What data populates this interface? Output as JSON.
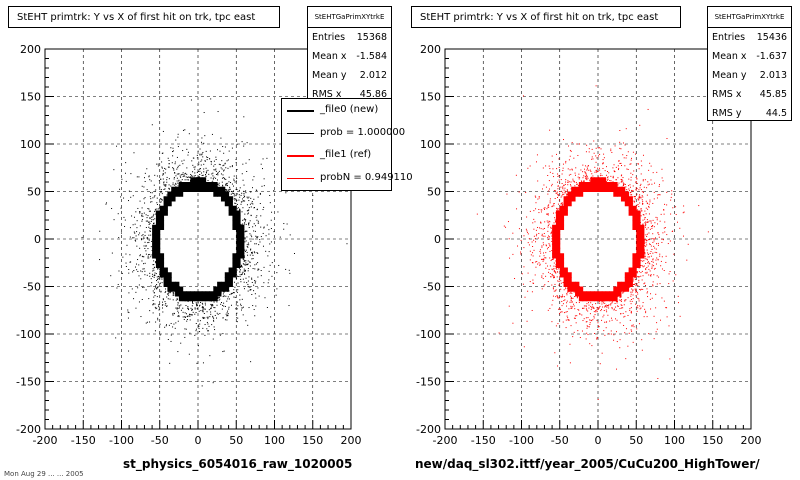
{
  "chart_data": [
    {
      "type": "scatter",
      "title": "StEHT primtrk: Y vs X of first hit on trk, tpc east",
      "xlabel": "st_physics_6054016_raw_1020005",
      "ylabel": "",
      "xlim": [
        -200,
        200
      ],
      "ylim": [
        -200,
        200
      ],
      "xticks": [
        "-200",
        "-150",
        "-100",
        "-50",
        "0",
        "50",
        "100",
        "150",
        "200"
      ],
      "yticks": [
        "200",
        "150",
        "100",
        "50",
        "0",
        "-50",
        "-100",
        "-150",
        "-200"
      ],
      "grid": true,
      "series": [
        {
          "name": "_file0 (new)",
          "color": "#000000",
          "ring": {
            "cx": 0,
            "cy": -2,
            "rx": 57,
            "ry": 63
          },
          "halo_spread": 28
        }
      ],
      "stats": {
        "header": "StEHTGaPrimXYtrkE",
        "rows": [
          {
            "label": "Entries",
            "value": "15368"
          },
          {
            "label": "Mean x",
            "value": "-1.584"
          },
          {
            "label": "Mean y",
            "value": "2.012"
          },
          {
            "label": "RMS x",
            "value": "45.86"
          }
        ]
      },
      "legend": {
        "placement": "top-right",
        "entries": [
          {
            "label": "_file0 (new)",
            "color": "#000000"
          },
          {
            "label": "prob = 1.000000",
            "color": "#000000"
          },
          {
            "label": "_file1 (ref)",
            "color": "#ff0000"
          },
          {
            "label": "probN = 0.949110",
            "color": "#ff0000"
          }
        ]
      }
    },
    {
      "type": "scatter",
      "title": "StEHT primtrk: Y vs X of first hit on trk, tpc east",
      "xlabel": "new/daq_sl302.ittf/year_2005/CuCu200_HighTower/",
      "ylabel": "",
      "xlim": [
        -200,
        200
      ],
      "ylim": [
        -200,
        200
      ],
      "xticks": [
        "-200",
        "-150",
        "-100",
        "-50",
        "0",
        "50",
        "100",
        "150",
        "200"
      ],
      "yticks": [
        "200",
        "150",
        "100",
        "50",
        "0",
        "-50",
        "-100",
        "-150",
        "-200"
      ],
      "grid": true,
      "series": [
        {
          "name": "_file1 (ref)",
          "color": "#ff0000",
          "ring": {
            "cx": 0,
            "cy": -2,
            "rx": 57,
            "ry": 63
          },
          "halo_spread": 28
        }
      ],
      "stats": {
        "header": "StEHTGaPrimXYtrkE",
        "rows": [
          {
            "label": "Entries",
            "value": "15436"
          },
          {
            "label": "Mean x",
            "value": "-1.637"
          },
          {
            "label": "Mean y",
            "value": "2.013"
          },
          {
            "label": "RMS x",
            "value": "45.85"
          },
          {
            "label": "RMS y",
            "value": "44.5"
          }
        ]
      }
    }
  ],
  "footnote": "Mon Aug 29 ... ... 2005"
}
